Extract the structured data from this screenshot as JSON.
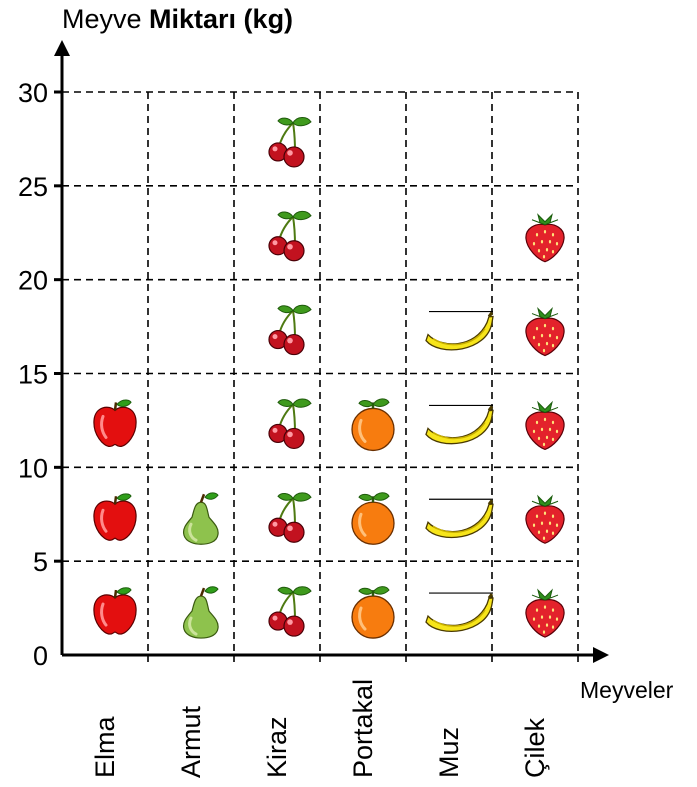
{
  "chart_data": {
    "type": "pictograph",
    "ylabel_part1": "Meyve ",
    "ylabel_part2": "Miktarı (kg)",
    "xlabel": "Meyveler",
    "categories": [
      "Elma",
      "Armut",
      "Kiraz",
      "Portakal",
      "Muz",
      "Çilek"
    ],
    "values": [
      15,
      10,
      30,
      15,
      20,
      25
    ],
    "unit_per_symbol": 5,
    "icons": [
      "apple-icon",
      "pear-icon",
      "cherry-icon",
      "orange-icon",
      "banana-icon",
      "strawberry-icon"
    ],
    "y_ticks": [
      "0",
      "5",
      "10",
      "15",
      "20",
      "25",
      "30"
    ],
    "ylim": [
      0,
      30
    ],
    "grid": true,
    "grid_style": "dashed"
  }
}
